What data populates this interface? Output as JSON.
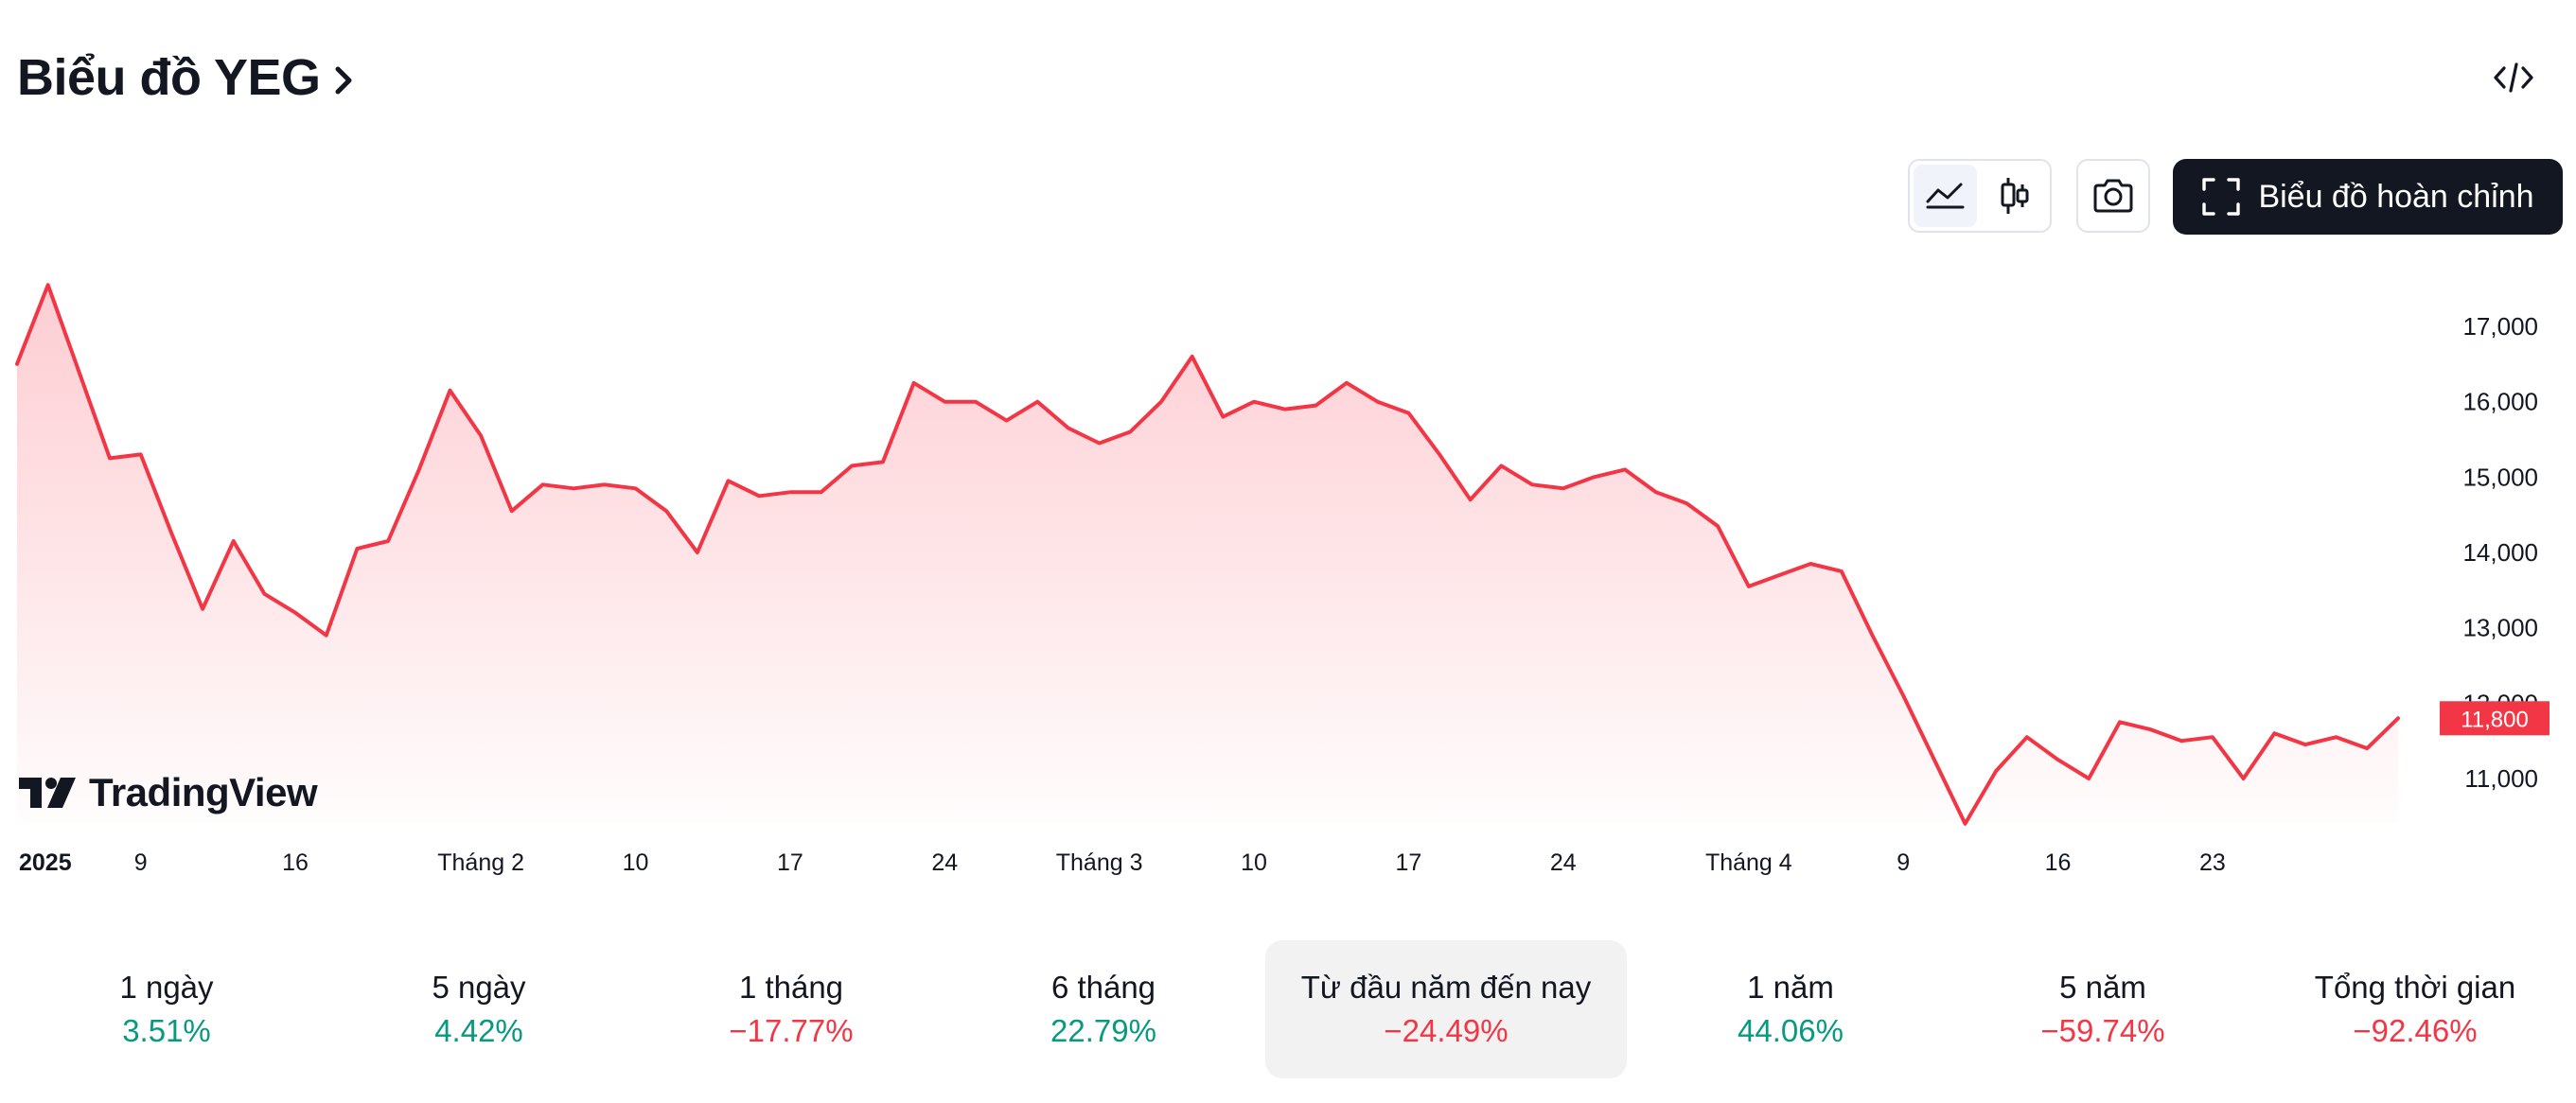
{
  "header": {
    "title": "Biểu đồ YEG",
    "embed_icon": "code-brackets-icon"
  },
  "toolbar": {
    "area_icon": "area-chart-icon",
    "candle_icon": "candlestick-icon",
    "camera_icon": "camera-icon",
    "full_chart_icon": "fullscreen-icon",
    "full_chart_label": "Biểu đồ hoàn chỉnh"
  },
  "branding": {
    "logo_text": "TradingView"
  },
  "colors": {
    "line": "#f23645",
    "fill_top": "#fdd0d4",
    "positive": "#089981",
    "negative": "#f23645"
  },
  "chart_data": {
    "type": "area",
    "ylim": [
      10300,
      17700
    ],
    "yticks": [
      "17,000",
      "16,000",
      "15,000",
      "14,000",
      "13,000",
      "12,000",
      "11,000"
    ],
    "ytick_values": [
      17000,
      16000,
      15000,
      14000,
      13000,
      12000,
      11000
    ],
    "xticks": [
      {
        "label": "2025",
        "index": 0,
        "bold": true
      },
      {
        "label": "9",
        "index": 4
      },
      {
        "label": "16",
        "index": 9
      },
      {
        "label": "Tháng 2",
        "index": 15
      },
      {
        "label": "10",
        "index": 20
      },
      {
        "label": "17",
        "index": 25
      },
      {
        "label": "24",
        "index": 30
      },
      {
        "label": "Tháng 3",
        "index": 35
      },
      {
        "label": "10",
        "index": 40
      },
      {
        "label": "17",
        "index": 45
      },
      {
        "label": "24",
        "index": 50
      },
      {
        "label": "Tháng 4",
        "index": 56
      },
      {
        "label": "9",
        "index": 61
      },
      {
        "label": "16",
        "index": 66
      },
      {
        "label": "23",
        "index": 71
      }
    ],
    "values": [
      16500,
      17550,
      16400,
      15250,
      15300,
      14250,
      13250,
      14150,
      13450,
      13200,
      12900,
      14050,
      14150,
      15100,
      16150,
      15550,
      14550,
      14900,
      14850,
      14900,
      14850,
      14550,
      14000,
      14950,
      14750,
      14800,
      14800,
      15150,
      15200,
      16250,
      16000,
      16000,
      15750,
      16000,
      15650,
      15450,
      15600,
      16000,
      16600,
      15800,
      16000,
      15900,
      15950,
      16250,
      16000,
      15850,
      15300,
      14700,
      15150,
      14900,
      14850,
      15000,
      15100,
      14800,
      14650,
      14350,
      13550,
      13700,
      13850,
      13750,
      12900,
      12100,
      11250,
      10400,
      11100,
      11550,
      11250,
      11000,
      11750,
      11650,
      11500,
      11550,
      11000,
      11600,
      11450,
      11550,
      11400,
      11800
    ],
    "last_value": 11800,
    "last_value_label": "11,800",
    "grid": false
  },
  "periods": [
    {
      "label": "1 ngày",
      "value": "3.51%",
      "dir": "pos"
    },
    {
      "label": "5 ngày",
      "value": "4.42%",
      "dir": "pos"
    },
    {
      "label": "1 tháng",
      "value": "−17.77%",
      "dir": "neg"
    },
    {
      "label": "6 tháng",
      "value": "22.79%",
      "dir": "pos"
    },
    {
      "label": "Từ đầu năm đến nay",
      "value": "−24.49%",
      "dir": "neg",
      "active": true
    },
    {
      "label": "1 năm",
      "value": "44.06%",
      "dir": "pos"
    },
    {
      "label": "5 năm",
      "value": "−59.74%",
      "dir": "neg"
    },
    {
      "label": "Tổng thời gian",
      "value": "−92.46%",
      "dir": "neg"
    }
  ]
}
